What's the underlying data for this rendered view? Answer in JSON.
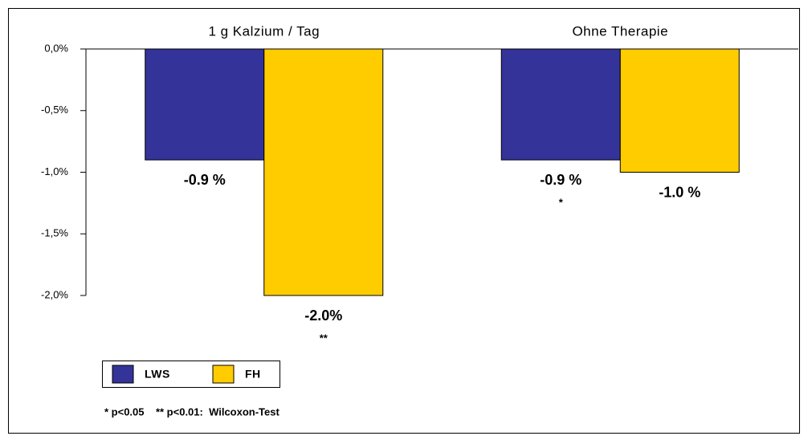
{
  "chart_data": {
    "type": "bar",
    "categories": [
      "1 g Kalzium / Tag",
      "Ohne Therapie"
    ],
    "series": [
      {
        "name": "LWS",
        "color": "#333399",
        "values": [
          -0.9,
          -0.9
        ],
        "value_labels": [
          "-0.9 %",
          "-0.9 %"
        ],
        "significance": [
          null,
          "*"
        ]
      },
      {
        "name": "FH",
        "color": "#ffcc00",
        "values": [
          -2.0,
          -1.0
        ],
        "value_labels": [
          "-2.0%",
          "-1.0 %"
        ],
        "significance": [
          "**",
          null
        ]
      }
    ],
    "ylim": [
      -2.0,
      0
    ],
    "yticks": [
      {
        "value": -2.0,
        "label": "-2,0%"
      },
      {
        "value": -1.5,
        "label": "-1,5%"
      },
      {
        "value": -1.0,
        "label": "-1,0%"
      },
      {
        "value": -0.5,
        "label": "-0,5%"
      },
      {
        "value": 0,
        "label": "0,0%"
      }
    ],
    "legend": "bottom-left",
    "note": "* p<0.05    ** p<0.01:  Wilcoxon-Test"
  }
}
